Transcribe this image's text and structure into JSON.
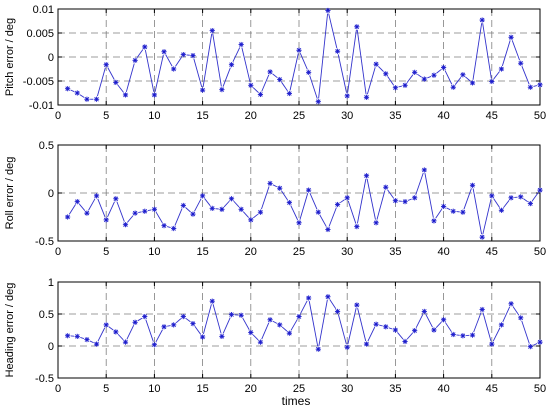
{
  "chart_data": [
    {
      "type": "line",
      "ylabel": "Pitch error / deg",
      "xlim": [
        0,
        50
      ],
      "ylim": [
        -0.01,
        0.01
      ],
      "xticks": [
        0,
        5,
        10,
        15,
        20,
        25,
        30,
        35,
        40,
        45,
        50
      ],
      "yticks": [
        -0.01,
        -0.005,
        0,
        0.005,
        0.01
      ],
      "ytick_labels": [
        "-0.01",
        "-0.005",
        "0",
        "0.005",
        "0.01"
      ],
      "grid": true,
      "x": [
        1,
        2,
        3,
        4,
        5,
        6,
        7,
        8,
        9,
        10,
        11,
        12,
        13,
        14,
        15,
        16,
        17,
        18,
        19,
        20,
        21,
        22,
        23,
        24,
        25,
        26,
        27,
        28,
        29,
        30,
        31,
        32,
        33,
        34,
        35,
        36,
        37,
        38,
        39,
        40,
        41,
        42,
        43,
        44,
        45,
        46,
        47,
        48,
        49,
        50
      ],
      "values": [
        -0.0066,
        -0.0075,
        -0.0088,
        -0.0088,
        -0.0016,
        -0.0053,
        -0.0079,
        -0.0007,
        0.0021,
        -0.0079,
        0.0011,
        -0.0025,
        0.0005,
        0.0003,
        -0.0069,
        0.0055,
        -0.0068,
        -0.0016,
        0.0026,
        -0.0059,
        -0.0078,
        -0.0031,
        -0.0047,
        -0.0076,
        0.0014,
        -0.0032,
        -0.0093,
        0.0097,
        0.0012,
        -0.0081,
        0.0063,
        -0.0084,
        -0.0015,
        -0.0035,
        -0.0064,
        -0.0059,
        -0.0032,
        -0.0046,
        -0.0038,
        -0.0022,
        -0.0063,
        -0.0037,
        -0.0054,
        0.0077,
        -0.0051,
        -0.0025,
        0.0041,
        -0.0013,
        -0.0063,
        -0.0058
      ]
    },
    {
      "type": "line",
      "ylabel": "Roll error / deg",
      "xlim": [
        0,
        50
      ],
      "ylim": [
        -0.5,
        0.5
      ],
      "xticks": [
        0,
        5,
        10,
        15,
        20,
        25,
        30,
        35,
        40,
        45,
        50
      ],
      "yticks": [
        -0.5,
        0,
        0.5
      ],
      "ytick_labels": [
        "-0.5",
        "0",
        "0.5"
      ],
      "grid": true,
      "x": [
        1,
        2,
        3,
        4,
        5,
        6,
        7,
        8,
        9,
        10,
        11,
        12,
        13,
        14,
        15,
        16,
        17,
        18,
        19,
        20,
        21,
        22,
        23,
        24,
        25,
        26,
        27,
        28,
        29,
        30,
        31,
        32,
        33,
        34,
        35,
        36,
        37,
        38,
        39,
        40,
        41,
        42,
        43,
        44,
        45,
        46,
        47,
        48,
        49,
        50
      ],
      "values": [
        -0.25,
        -0.09,
        -0.21,
        -0.03,
        -0.28,
        -0.06,
        -0.33,
        -0.21,
        -0.19,
        -0.17,
        -0.34,
        -0.37,
        -0.13,
        -0.22,
        -0.03,
        -0.16,
        -0.17,
        -0.06,
        -0.17,
        -0.28,
        -0.2,
        0.1,
        0.05,
        -0.1,
        -0.31,
        0.03,
        -0.2,
        -0.38,
        -0.12,
        -0.05,
        -0.35,
        0.18,
        -0.31,
        0.06,
        -0.08,
        -0.09,
        -0.05,
        0.24,
        -0.29,
        -0.14,
        -0.19,
        -0.2,
        0.08,
        -0.46,
        -0.03,
        -0.18,
        -0.05,
        -0.04,
        -0.11,
        0.03
      ]
    },
    {
      "type": "line",
      "ylabel": "Heading error / deg",
      "xlabel": "times",
      "xlim": [
        0,
        50
      ],
      "ylim": [
        -0.5,
        1
      ],
      "xticks": [
        0,
        5,
        10,
        15,
        20,
        25,
        30,
        35,
        40,
        45,
        50
      ],
      "yticks": [
        -0.5,
        0,
        0.5,
        1
      ],
      "ytick_labels": [
        "-0.5",
        "0",
        "0.5",
        "1"
      ],
      "grid": true,
      "x": [
        1,
        2,
        3,
        4,
        5,
        6,
        7,
        8,
        9,
        10,
        11,
        12,
        13,
        14,
        15,
        16,
        17,
        18,
        19,
        20,
        21,
        22,
        23,
        24,
        25,
        26,
        27,
        28,
        29,
        30,
        31,
        32,
        33,
        34,
        35,
        36,
        37,
        38,
        39,
        40,
        41,
        42,
        43,
        44,
        45,
        46,
        47,
        48,
        49,
        50
      ],
      "values": [
        0.16,
        0.15,
        0.1,
        0.03,
        0.33,
        0.22,
        0.06,
        0.37,
        0.46,
        0.02,
        0.3,
        0.33,
        0.46,
        0.35,
        0.14,
        0.7,
        0.15,
        0.49,
        0.48,
        0.21,
        0.06,
        0.41,
        0.33,
        0.2,
        0.46,
        0.75,
        -0.05,
        0.77,
        0.54,
        -0.02,
        0.64,
        0.03,
        0.34,
        0.3,
        0.25,
        0.07,
        0.24,
        0.54,
        0.25,
        0.41,
        0.18,
        0.16,
        0.17,
        0.57,
        0.03,
        0.33,
        0.66,
        0.44,
        -0.01,
        0.06
      ]
    }
  ]
}
